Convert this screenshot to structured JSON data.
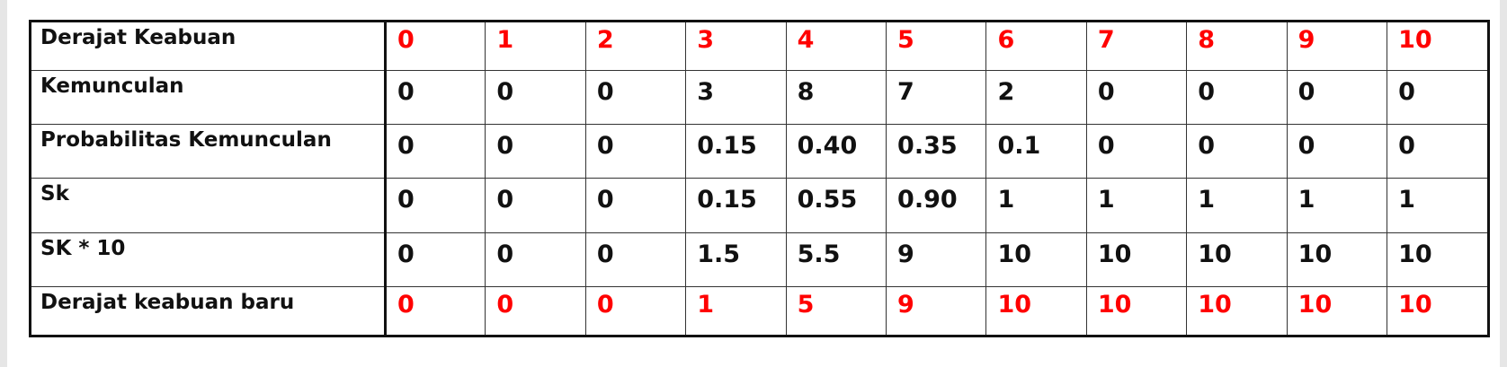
{
  "table": {
    "rows": [
      {
        "label": "Derajat Keabuan",
        "values": [
          "0",
          "1",
          "2",
          "3",
          "4",
          "5",
          "6",
          "7",
          "8",
          "9",
          "10"
        ],
        "style": "red"
      },
      {
        "label": "Kemunculan",
        "values": [
          "0",
          "0",
          "0",
          "3",
          "8",
          "7",
          "2",
          "0",
          "0",
          "0",
          "0"
        ],
        "style": "black"
      },
      {
        "label": "Probabilitas Kemunculan",
        "values": [
          "0",
          "0",
          "0",
          "0.15",
          "0.40",
          "0.35",
          "0.1",
          "0",
          "0",
          "0",
          "0"
        ],
        "style": "black"
      },
      {
        "label": "Sk",
        "values": [
          "0",
          "0",
          "0",
          "0.15",
          "0.55",
          "0.90",
          "1",
          "1",
          "1",
          "1",
          "1"
        ],
        "style": "black"
      },
      {
        "label": "SK * 10",
        "values": [
          "0",
          "0",
          "0",
          "1.5",
          "5.5",
          "9",
          "10",
          "10",
          "10",
          "10",
          "10"
        ],
        "style": "black"
      },
      {
        "label": "Derajat keabuan baru",
        "values": [
          "0",
          "0",
          "0",
          "1",
          "5",
          "9",
          "10",
          "10",
          "10",
          "10",
          "10"
        ],
        "style": "red"
      }
    ]
  },
  "colors": {
    "highlight": "#ff0000",
    "text": "#111111"
  }
}
